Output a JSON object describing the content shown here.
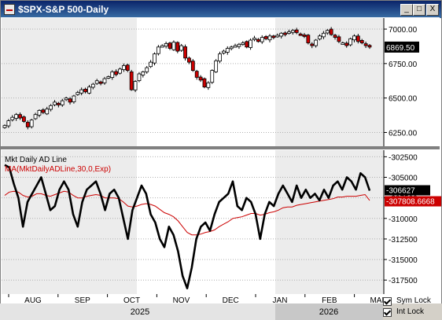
{
  "window": {
    "title": "$SPX-S&P 500-Daily",
    "buttons": {
      "minimize": "_",
      "maximize": "□",
      "close": "X"
    }
  },
  "sym_lock": {
    "label": "Sym Lock",
    "checked": true
  },
  "int_lock": {
    "label": "Int Lock",
    "checked": true
  },
  "colors": {
    "up": "#ffffff",
    "down": "#cc0000",
    "ma": "#cc0000",
    "ad": "#000000"
  },
  "chart_data": [
    {
      "type": "candlestick",
      "title": "$SPX-S&P 500-Daily",
      "y_ticks": [
        6250,
        6500,
        6750,
        7000
      ],
      "y_tick_labels": [
        "6250.00",
        "6500.00",
        "6750.00",
        "7000.00"
      ],
      "ylim": [
        6150,
        7080
      ],
      "last_value_label": "6869.50",
      "last_value": 6869.5,
      "closes": [
        6300,
        6335,
        6360,
        6380,
        6355,
        6330,
        6290,
        6340,
        6380,
        6410,
        6395,
        6420,
        6445,
        6470,
        6450,
        6480,
        6500,
        6470,
        6515,
        6540,
        6560,
        6545,
        6580,
        6600,
        6625,
        6610,
        6640,
        6655,
        6690,
        6670,
        6710,
        6735,
        6700,
        6560,
        6620,
        6675,
        6690,
        6720,
        6760,
        6820,
        6870,
        6880,
        6895,
        6860,
        6905,
        6840,
        6880,
        6790,
        6760,
        6700,
        6650,
        6630,
        6580,
        6610,
        6700,
        6770,
        6820,
        6840,
        6860,
        6870,
        6880,
        6890,
        6900,
        6870,
        6920,
        6935,
        6910,
        6940,
        6930,
        6950,
        6940,
        6955,
        6970,
        6960,
        6980,
        6990,
        6975,
        6960,
        6950,
        6900,
        6880,
        6920,
        6950,
        6970,
        6990,
        6960,
        6940,
        6910,
        6900,
        6880,
        6930,
        6950,
        6910,
        6900,
        6880,
        6869.5
      ]
    },
    {
      "type": "line",
      "legend": [
        "Mkt Daily AD Line",
        "MA(MktDailyADLine,30,0,Exp)"
      ],
      "y_ticks": [
        -302500,
        -305000,
        -307500,
        -310000,
        -312500,
        -315000,
        -317500
      ],
      "y_tick_labels": [
        "-302500",
        "-305000",
        "-307500",
        "-310000",
        "-312500",
        "-315000",
        "-317500"
      ],
      "ylim": [
        -319200,
        -301700
      ],
      "last_ad_label": "-306627",
      "last_ad": -306627,
      "last_ma_label": "-307808.6668",
      "last_ma": -307808.6668,
      "series": [
        {
          "name": "Mkt Daily AD Line",
          "values": [
            -303500,
            -303800,
            -305800,
            -307500,
            -311000,
            -308000,
            -307000,
            -306000,
            -305000,
            -307000,
            -309000,
            -308500,
            -306500,
            -305500,
            -306500,
            -309500,
            -311000,
            -308000,
            -306500,
            -306000,
            -305500,
            -307000,
            -309000,
            -307000,
            -306500,
            -307500,
            -310000,
            -312500,
            -309000,
            -307500,
            -306000,
            -307000,
            -309500,
            -310500,
            -312500,
            -313500,
            -311000,
            -312000,
            -314000,
            -317000,
            -318500,
            -316000,
            -312500,
            -311000,
            -310500,
            -311500,
            -309500,
            -308000,
            -307500,
            -307000,
            -305500,
            -308500,
            -309000,
            -307500,
            -308000,
            -309500,
            -312500,
            -309500,
            -308000,
            -308500,
            -307000,
            -306000,
            -307000,
            -308000,
            -306000,
            -307500,
            -306500,
            -307500,
            -307000,
            -307800,
            -306500,
            -307500,
            -306000,
            -305500,
            -306500,
            -305000,
            -305500,
            -306500,
            -304500,
            -305000,
            -306627
          ]
        },
        {
          "name": "MA(MktDailyADLine,30,0,Exp)",
          "values": [
            -307200,
            -306800,
            -306700,
            -306800,
            -307200,
            -307400,
            -307300,
            -307000,
            -307000,
            -307200,
            -307300,
            -307100,
            -306900,
            -306700,
            -306800,
            -307200,
            -307500,
            -307500,
            -307300,
            -307200,
            -307100,
            -307200,
            -307500,
            -307500,
            -307500,
            -307600,
            -308000,
            -308500,
            -308600,
            -308500,
            -308300,
            -308200,
            -308300,
            -308500,
            -308900,
            -309300,
            -309500,
            -309800,
            -310300,
            -311000,
            -311700,
            -312000,
            -312000,
            -311900,
            -311700,
            -311600,
            -311400,
            -311000,
            -310700,
            -310400,
            -310000,
            -309900,
            -309800,
            -309600,
            -309400,
            -309400,
            -309600,
            -309500,
            -309300,
            -309200,
            -309000,
            -308700,
            -308600,
            -308600,
            -308400,
            -308300,
            -308200,
            -308100,
            -308000,
            -307900,
            -307800,
            -307700,
            -307600,
            -307400,
            -307400,
            -307300,
            -307300,
            -307300,
            -307200,
            -307100,
            -307808.6668
          ]
        }
      ]
    }
  ],
  "x_axis": {
    "month_labels": [
      "AUG",
      "SEP",
      "OCT",
      "NOV",
      "DEC",
      "JAN",
      "FEB",
      "MAR"
    ],
    "year_labels": [
      "2025",
      "2026"
    ]
  }
}
